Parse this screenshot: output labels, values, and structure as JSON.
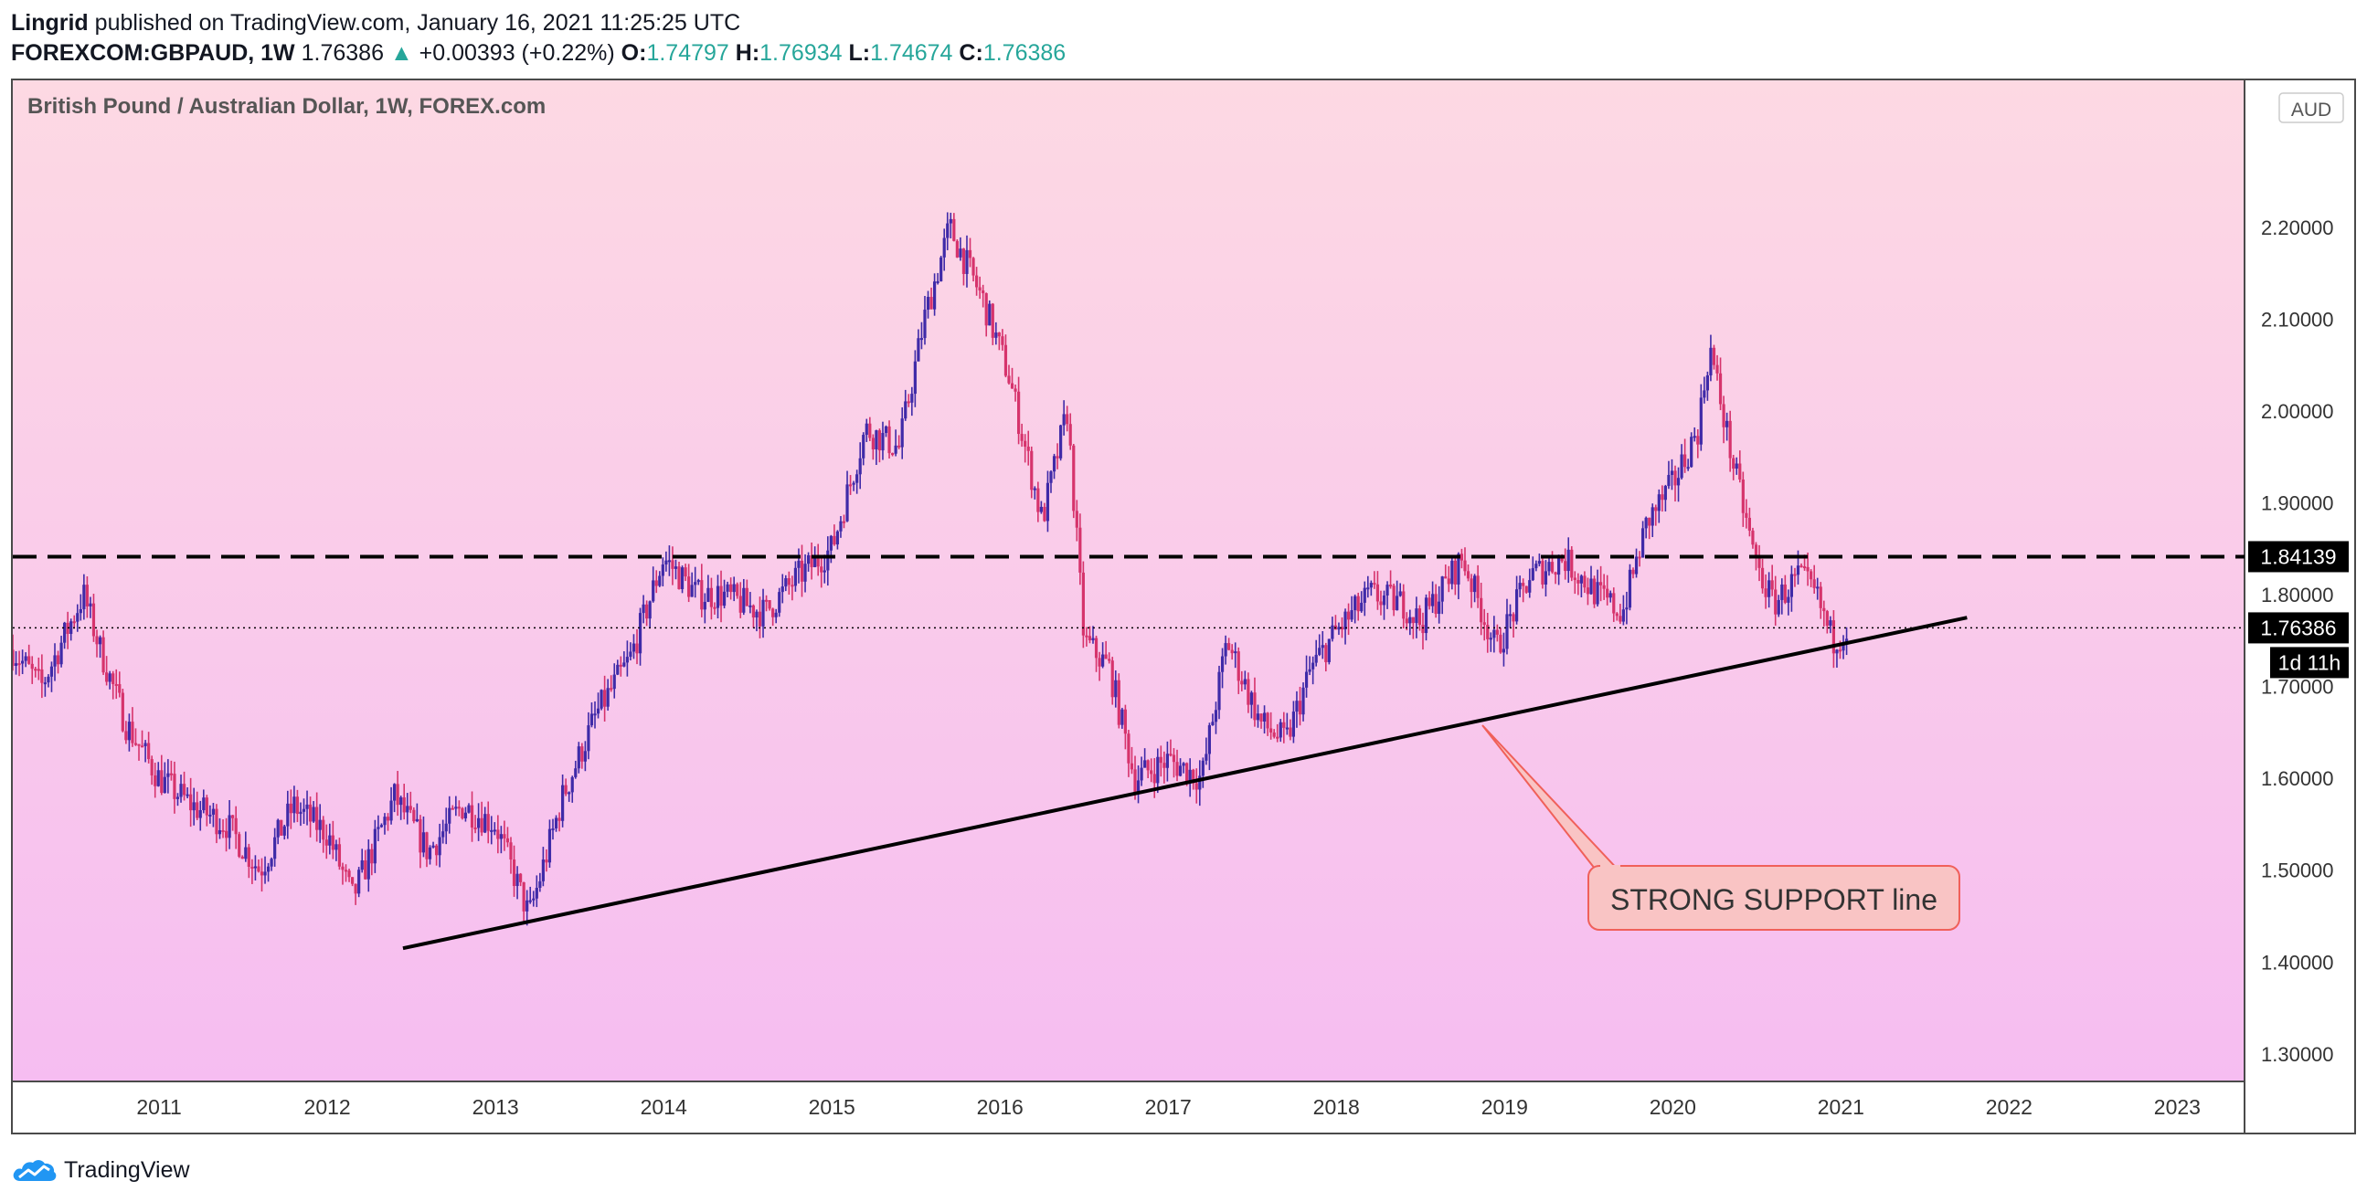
{
  "header": {
    "author": "Lingrid",
    "published_text": "published on TradingView.com, January 16, 2021 11:25:25 UTC",
    "symbol": "FOREXCOM:GBPAUD, 1W",
    "last": "1.76386",
    "change_arrow": "▲",
    "change": "+0.00393 (+0.22%)",
    "o_label": "O:",
    "o": "1.74797",
    "h_label": "H:",
    "h": "1.76934",
    "l_label": "L:",
    "l": "1.74674",
    "c_label": "C:",
    "c": "1.76386"
  },
  "chart_title": "British Pound / Australian Dollar, 1W, FOREX.com",
  "currency_badge": "AUD",
  "price_labels": {
    "resistance": "1.84139",
    "last": "1.76386",
    "countdown": "1d 11h"
  },
  "annotation": "STRONG SUPPORT line",
  "footer": {
    "brand": "TradingView"
  },
  "colors": {
    "bg_top": "#fdd9e3",
    "bg_bottom": "#f6bdf1",
    "bull": "#3f2aa8",
    "bear": "#d6336c",
    "callout_fill": "#f9c4c4",
    "callout_border": "#f0605a",
    "change_up": "#26a69a"
  },
  "chart_data": {
    "type": "candlestick",
    "title": "British Pound / Australian Dollar, 1W, FOREX.com",
    "timeframe": "1W",
    "currency": "AUD",
    "x_tick_labels": [
      "2011",
      "2012",
      "2013",
      "2014",
      "2015",
      "2016",
      "2017",
      "2018",
      "2019",
      "2020",
      "2021",
      "2022",
      "2023"
    ],
    "y_tick_labels": [
      "1.30000",
      "1.40000",
      "1.50000",
      "1.60000",
      "1.70000",
      "1.80000",
      "1.90000",
      "2.00000",
      "2.10000",
      "2.20000"
    ],
    "x_range": [
      2010.13,
      2023.4
    ],
    "y_range": [
      1.27,
      2.36
    ],
    "price_path": [
      [
        2010.13,
        1.74
      ],
      [
        2010.3,
        1.7
      ],
      [
        2010.45,
        1.76
      ],
      [
        2010.55,
        1.8
      ],
      [
        2010.65,
        1.74
      ],
      [
        2010.8,
        1.66
      ],
      [
        2011.0,
        1.6
      ],
      [
        2011.2,
        1.57
      ],
      [
        2011.4,
        1.55
      ],
      [
        2011.6,
        1.5
      ],
      [
        2011.8,
        1.57
      ],
      [
        2012.0,
        1.54
      ],
      [
        2012.15,
        1.47
      ],
      [
        2012.4,
        1.58
      ],
      [
        2012.6,
        1.52
      ],
      [
        2012.8,
        1.57
      ],
      [
        2013.0,
        1.55
      ],
      [
        2013.2,
        1.45
      ],
      [
        2013.4,
        1.58
      ],
      [
        2013.6,
        1.67
      ],
      [
        2013.8,
        1.73
      ],
      [
        2014.0,
        1.84
      ],
      [
        2014.2,
        1.8
      ],
      [
        2014.35,
        1.8
      ],
      [
        2014.6,
        1.78
      ],
      [
        2014.8,
        1.82
      ],
      [
        2015.0,
        1.85
      ],
      [
        2015.2,
        1.98
      ],
      [
        2015.4,
        1.96
      ],
      [
        2015.55,
        2.1
      ],
      [
        2015.7,
        2.2
      ],
      [
        2015.9,
        2.12
      ],
      [
        2016.05,
        2.04
      ],
      [
        2016.25,
        1.88
      ],
      [
        2016.4,
        2.0
      ],
      [
        2016.5,
        1.75
      ],
      [
        2016.65,
        1.72
      ],
      [
        2016.8,
        1.6
      ],
      [
        2017.0,
        1.62
      ],
      [
        2017.2,
        1.6
      ],
      [
        2017.35,
        1.75
      ],
      [
        2017.55,
        1.66
      ],
      [
        2017.7,
        1.64
      ],
      [
        2017.85,
        1.72
      ],
      [
        2018.0,
        1.76
      ],
      [
        2018.2,
        1.8
      ],
      [
        2018.4,
        1.79
      ],
      [
        2018.5,
        1.77
      ],
      [
        2018.75,
        1.84
      ],
      [
        2018.95,
        1.74
      ],
      [
        2019.15,
        1.82
      ],
      [
        2019.35,
        1.84
      ],
      [
        2019.55,
        1.8
      ],
      [
        2019.7,
        1.78
      ],
      [
        2019.85,
        1.88
      ],
      [
        2020.0,
        1.92
      ],
      [
        2020.15,
        1.98
      ],
      [
        2020.22,
        2.07
      ],
      [
        2020.35,
        1.95
      ],
      [
        2020.5,
        1.83
      ],
      [
        2020.6,
        1.79
      ],
      [
        2020.75,
        1.82
      ],
      [
        2020.85,
        1.8
      ],
      [
        2020.95,
        1.75
      ],
      [
        2021.04,
        1.763
      ]
    ],
    "support_line": {
      "start": [
        2012.45,
        1.415
      ],
      "end": [
        2021.75,
        1.775
      ]
    },
    "resistance_level": 1.84139,
    "last_price": 1.76386,
    "grid": false
  }
}
